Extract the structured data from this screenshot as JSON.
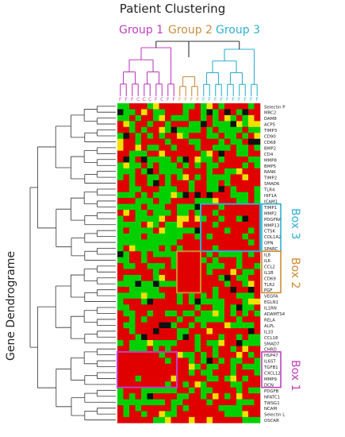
{
  "title": "Patient Clustering",
  "y_axis_label": "Gene Dendrograme",
  "groups": [
    {
      "label": "Group 1",
      "color": "#c040c0"
    },
    {
      "label": "Group 2",
      "color": "#c89040"
    },
    {
      "label": "Group 3",
      "color": "#30b0d0"
    }
  ],
  "boxes": [
    {
      "label": "Box 3",
      "color": "#30b0d0"
    },
    {
      "label": "Box 2",
      "color": "#d08a30"
    },
    {
      "label": "Box 1",
      "color": "#c040c0"
    }
  ],
  "colors": {
    "high": "#e00000",
    "low": "#00d000",
    "mid": "#101010",
    "sat": "#f0e000"
  },
  "chart_data": {
    "type": "heatmap",
    "title": "Patient Clustering",
    "ylabel": "Gene Dendrograme",
    "columns": [
      "F",
      "F",
      "F",
      "C",
      "C",
      "C",
      "F",
      "C",
      "F",
      "F",
      "F",
      "F",
      "F",
      "F",
      "F",
      "F",
      "F",
      "F",
      "F",
      "F",
      "F",
      "F",
      "F",
      "F"
    ],
    "column_groups": [
      0,
      0,
      0,
      0,
      0,
      0,
      0,
      0,
      0,
      0,
      1,
      1,
      1,
      1,
      2,
      2,
      2,
      2,
      2,
      2,
      2,
      2,
      2,
      2
    ],
    "genes": [
      "Selectin P",
      "MRC2",
      "DAM8",
      "ACP5",
      "TIMP3",
      "CD90",
      "CD68",
      "BMP2",
      "CD4",
      "MMP8",
      "BMP5",
      "RANK",
      "TIMP2",
      "SMAD6",
      "TLR4",
      "HIF1A",
      "ICAM1",
      "TIMP1",
      "MMP2",
      "PDGFRA",
      "MMP13",
      "CTSK",
      "COL1A2",
      "OPN",
      "SPARC",
      "IL8",
      "IL6",
      "CCL2",
      "IL1B",
      "CD69",
      "TLR2",
      "PGF",
      "VEGFA",
      "EGLN1",
      "IL1RN",
      "ADAMTS4",
      "RELA",
      "ALPL",
      "IL10",
      "CCL18",
      "SMAD7",
      "CHRD",
      "HSP47",
      "IL6ST",
      "TGFB1",
      "CXCL12",
      "MMP9",
      "DCN",
      "PDGFB",
      "NFATC1",
      "TWSG1",
      "NCAM",
      "Selectin L",
      "OSCAR"
    ],
    "row_boxes": [
      {
        "label": "Box 3",
        "row_start": 17,
        "row_end": 24,
        "col_start": 14,
        "col_end": 23
      },
      {
        "label": "Box 2",
        "row_start": 25,
        "row_end": 31,
        "col_start": 10,
        "col_end": 13
      },
      {
        "label": "Box 1",
        "row_start": 42,
        "row_end": 47,
        "col_start": 0,
        "col_end": 9
      }
    ],
    "values": [
      "GGRRRGYRRRRGGRGYRGRRRRGR",
      "KGGRYRGGRRRGRRGKGRKRGKRR",
      "GGRGRRGYRGGGRRGRGRYGRGYR",
      "RYGRRGRRGRRRGGKRGGGKYGYY",
      "RRGRGRRYGKGGGGRGRGGGGRGG",
      "GKRGRGRGRRYGRRRGGRGGRGRY",
      "YRRGRRRRGRRRGGRRRGRGGRKK",
      "YRRYRGGRRGRRRGRRGGGRGGRG",
      "RRGGGRRYRRRRRRGYRKRRGGRR",
      "RKGRKGGGGRGKRYGGRGRRRRGG",
      "GYGGRGRGGGRGRGRGGRRRRGRG",
      "GGGRGKRGGGGRRRRGRRGGYRRR",
      "GRGRRGGRGRGYRGRGGGGRRYRR",
      "RRGRRGKRGRRRGRRGGRGRRRRR",
      "RRGGRRRGGGRRGRRGGKRGRRRG",
      "GGGRGRGGGYGKRKRKRRRGGGRG",
      "RRRGGGRGGRRRRGGGYRRRGGRG",
      "GGGGRGGGRRGGGKRRRGRRRRRR",
      "RYRGGRGGGRGGRGRRGRRRRRRR",
      "GRRGGGGYRRYYRYGRRGRRGKRR",
      "GGGGRYGRGGYRRRRRGRRRRRRR",
      "GRGGGGRYGGGGGKRRRRGRRRGR",
      "GGGGRGGGGGGRRGRGRRRRRGRR",
      "GGGGGGGGGGRRRRRRRRRRRRGR",
      "GRYGGGGRGRGRRRRRGRRRRRRR",
      "KGRRGRGGGGRRRRRGRGGGGRGR",
      "GGRRGRRRRGRRRRGRGRRRGRRR",
      "RGGRRGGGRGRRRRRGGGRRGRRG",
      "RRRRRRGRRRRRRRRGRRRYRGGR",
      "RGGGRRGYRRRRRRRRRGKRGGRR",
      "GGGKGGKGGGRRRRRRRRGRRGYR",
      "RRGGGGGRRRRRRRRRGRRKRRKR",
      "GGGGYGGGRRGRGRGRGRRRGGGR",
      "GRRRGKRRRRGRGKGGGGRRRGYY",
      "GGRRRRRRRRRRRGRRGGRGKGGR",
      "RGGRRGRRGGRGGRGGYGRGRGRG",
      "RRGRGRRRRRGRRGGGGGRRGRRR",
      "RGGRRRRKKGRRGRGRRRYGGGGR",
      "RRGRRRKRRRGGRRRYRRRRRRKR",
      "RRRGKRRRRRGKRGRRRGRRGRGG",
      "GRGGGYGGGGRRRGRGGYRRKGGG",
      "RRGGGRGRGRRRRGRRGRRGRYRR",
      "RRRRRRRGRRYGGRGRGRRRYRGR",
      "RRRRRRRRGRRRGRGKRGRGGRRG",
      "RRRRRRRRRRRRYGRGGRRGRGGG",
      "RRRRRRRRRRRRGRGGRRRGRRRG",
      "RRRGRRRRRYRRRRRGGRGYRGRR",
      "RRRRRRRRGRRGRYGRRRRGGRRR",
      "GRRRGGGGGGRRGRGGRRRRGRGG",
      "GRGRGKRRRRGGRRGRYRGRYRRR",
      "GGGGGGGGRGGRRRRGRRRRGGGR",
      "RGRGRRRRRGRGRRRRRGGGGRRR",
      "RGRRGRRYGGRRRRRRRRGGGYRR",
      "RRRRRRGGYRRRYRRYRRRRRGGG"
    ]
  }
}
